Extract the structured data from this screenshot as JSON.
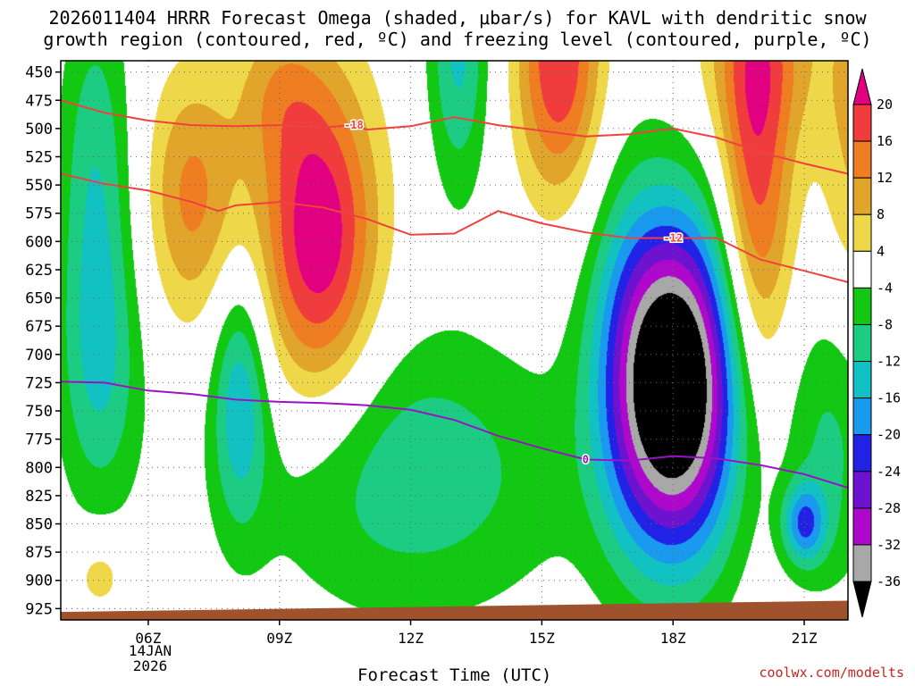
{
  "title_line1": "2026011404 HRRR Forecast Omega (shaded, μbar/s) for KAVL with dendritic snow",
  "title_line2": "growth region (contoured, red, ºC) and freezing level (contoured, purple, ºC)",
  "x_axis_title": "Forecast Time (UTC)",
  "credit": "coolwx.com/modelts",
  "date_label": [
    "14JAN",
    "2026"
  ],
  "chart_data": {
    "type": "heatmap",
    "variable": "Omega (μbar/s)",
    "x_ticks": [
      {
        "hour": 6,
        "label": "06Z"
      },
      {
        "hour": 9,
        "label": "09Z"
      },
      {
        "hour": 12,
        "label": "12Z"
      },
      {
        "hour": 15,
        "label": "15Z"
      },
      {
        "hour": 18,
        "label": "18Z"
      },
      {
        "hour": 21,
        "label": "21Z"
      }
    ],
    "x_range_hours": [
      4,
      22
    ],
    "y_ticks": [
      450,
      475,
      500,
      525,
      550,
      575,
      600,
      625,
      650,
      675,
      700,
      725,
      750,
      775,
      800,
      825,
      850,
      875,
      900,
      925
    ],
    "y_range_mb": [
      440,
      935
    ],
    "colorbar": {
      "labels": [
        "20",
        "16",
        "12",
        "8",
        "4",
        "-4",
        "-8",
        "-12",
        "-16",
        "-20",
        "-24",
        "-28",
        "-32",
        "-36"
      ],
      "bins": [
        {
          "range": [
            20,
            30
          ],
          "color": "#e00080"
        },
        {
          "range": [
            16,
            20
          ],
          "color": "#f03c3c"
        },
        {
          "range": [
            12,
            16
          ],
          "color": "#ef7d22"
        },
        {
          "range": [
            8,
            12
          ],
          "color": "#e0a52a"
        },
        {
          "range": [
            4,
            8
          ],
          "color": "#eed84a"
        },
        {
          "range": [
            -4,
            4
          ],
          "color": "#ffffff"
        },
        {
          "range": [
            -8,
            -4
          ],
          "color": "#12c812"
        },
        {
          "range": [
            -12,
            -8
          ],
          "color": "#1ccc82"
        },
        {
          "range": [
            -16,
            -12
          ],
          "color": "#12c2c2"
        },
        {
          "range": [
            -20,
            -16
          ],
          "color": "#1a9aef"
        },
        {
          "range": [
            -24,
            -20
          ],
          "color": "#2222e6"
        },
        {
          "range": [
            -28,
            -24
          ],
          "color": "#6d13cf"
        },
        {
          "range": [
            -32,
            -28
          ],
          "color": "#ad08cb"
        },
        {
          "range": [
            -36,
            -32
          ],
          "color": "#a8a8a8"
        },
        {
          "range": [
            -48,
            -36
          ],
          "color": "#000000"
        }
      ]
    },
    "field_centers": [
      {
        "hour": 4.9,
        "mb": 895,
        "amp": 7,
        "sx": 0.45,
        "sy": 25
      },
      {
        "hour": 7.0,
        "mb": 560,
        "amp": 13,
        "sx": 0.75,
        "sy": 80
      },
      {
        "hour": 9.9,
        "mb": 598,
        "amp": 24,
        "sx": 0.95,
        "sy": 105
      },
      {
        "hour": 8.9,
        "mb": 465,
        "amp": 7,
        "sx": 0.7,
        "sy": 50
      },
      {
        "hour": 15.4,
        "mb": 440,
        "amp": 20,
        "sx": 0.7,
        "sy": 85
      },
      {
        "hour": 19.9,
        "mb": 560,
        "amp": 18,
        "sx": 0.6,
        "sy": 130
      },
      {
        "hour": 20.0,
        "mb": 430,
        "amp": 10,
        "sx": 1.0,
        "sy": 60
      },
      {
        "hour": 22.2,
        "mb": 500,
        "amp": 9,
        "sx": 0.6,
        "sy": 120
      },
      {
        "hour": 13.1,
        "mb": 430,
        "amp": -13,
        "sx": 0.5,
        "sy": 90
      },
      {
        "hour": 4.8,
        "mb": 540,
        "amp": -11,
        "sx": 0.6,
        "sy": 120
      },
      {
        "hour": 4.9,
        "mb": 720,
        "amp": -10,
        "sx": 0.7,
        "sy": 90
      },
      {
        "hour": 8.1,
        "mb": 735,
        "amp": -14,
        "sx": 0.45,
        "sy": 80
      },
      {
        "hour": 12.0,
        "mb": 805,
        "amp": -11,
        "sx": 2.6,
        "sy": 90
      },
      {
        "hour": 18.1,
        "mb": 728,
        "amp": -46,
        "sx": 1.0,
        "sy": 105
      },
      {
        "hour": 16.9,
        "mb": 690,
        "amp": -8,
        "sx": 0.7,
        "sy": 120
      },
      {
        "hour": 21.0,
        "mb": 850,
        "amp": -17,
        "sx": 0.35,
        "sy": 25
      },
      {
        "hour": 21.6,
        "mb": 780,
        "amp": -9,
        "sx": 0.8,
        "sy": 95
      }
    ],
    "dgz_contours": [
      {
        "label": "-18",
        "label_at": [
          10.7,
          497
        ],
        "points": [
          [
            4,
            475
          ],
          [
            5,
            486
          ],
          [
            6,
            493
          ],
          [
            7,
            497
          ],
          [
            8,
            498
          ],
          [
            9,
            497
          ],
          [
            10,
            499
          ],
          [
            10.7,
            497
          ],
          [
            11,
            501
          ],
          [
            12,
            498
          ],
          [
            13,
            490
          ],
          [
            14,
            497
          ],
          [
            15,
            502
          ],
          [
            16,
            507
          ],
          [
            17,
            505
          ],
          [
            18,
            500
          ],
          [
            19,
            508
          ],
          [
            20,
            521
          ],
          [
            21,
            531
          ],
          [
            22,
            540
          ]
        ]
      },
      {
        "label": "-12",
        "label_at": [
          18.0,
          597
        ],
        "points": [
          [
            4,
            540
          ],
          [
            5,
            549
          ],
          [
            6,
            555
          ],
          [
            7,
            565
          ],
          [
            7.6,
            573
          ],
          [
            8,
            568
          ],
          [
            9,
            565
          ],
          [
            10,
            570
          ],
          [
            11,
            580
          ],
          [
            12,
            594
          ],
          [
            13,
            593
          ],
          [
            14,
            573
          ],
          [
            15,
            584
          ],
          [
            16,
            592
          ],
          [
            17,
            597
          ],
          [
            18,
            597
          ],
          [
            19,
            597
          ],
          [
            20,
            616
          ],
          [
            21,
            626
          ],
          [
            22,
            636
          ]
        ]
      }
    ],
    "freezing_contour": {
      "label": "0",
      "label_at": [
        16.0,
        793
      ],
      "points": [
        [
          4,
          724
        ],
        [
          5,
          725
        ],
        [
          6,
          732
        ],
        [
          7,
          735
        ],
        [
          8,
          740
        ],
        [
          9,
          742
        ],
        [
          10,
          743
        ],
        [
          11,
          745
        ],
        [
          12,
          749
        ],
        [
          13,
          758
        ],
        [
          14,
          772
        ],
        [
          15,
          783
        ],
        [
          16,
          793
        ],
        [
          17,
          794
        ],
        [
          18,
          790
        ],
        [
          19,
          792
        ],
        [
          20,
          798
        ],
        [
          21,
          806
        ],
        [
          22,
          818
        ]
      ]
    },
    "terrain_top_mb": [
      [
        4,
        928
      ],
      [
        22,
        918
      ]
    ]
  }
}
